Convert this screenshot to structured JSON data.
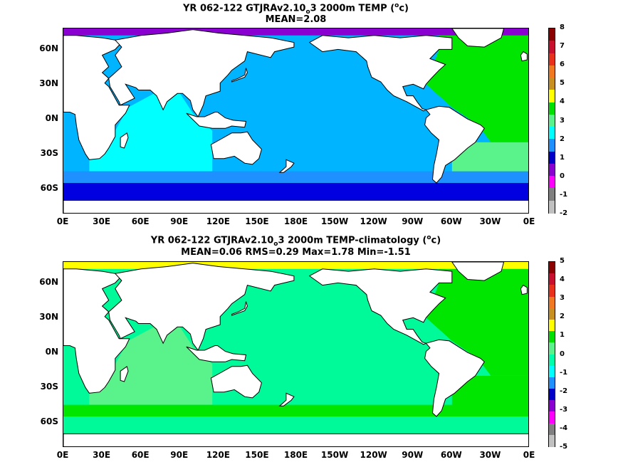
{
  "chart_data": [
    {
      "type": "heatmap",
      "title": "YR 062-122 GTJRAv2.10",
      "title_sub": "o",
      "title_rest": "3 2000m TEMP (",
      "title_sup": "o",
      "title_end": "c)",
      "subtitle": "MEAN=2.08",
      "x_ticks": [
        "0E",
        "30E",
        "60E",
        "90E",
        "120E",
        "150E",
        "180E",
        "150W",
        "120W",
        "90W",
        "60W",
        "30W",
        "0E"
      ],
      "y_ticks": [
        "60N",
        "30N",
        "0N",
        "30S",
        "60S"
      ],
      "colorbar": {
        "labels": [
          "8",
          "7",
          "6",
          "5",
          "4",
          "3",
          "2",
          "1",
          "0",
          "-1",
          "-2"
        ],
        "colors": [
          "#8b0000",
          "#c8102e",
          "#e8301a",
          "#f07820",
          "#c89020",
          "#ffff00",
          "#00e000",
          "#5af28a",
          "#00ffff",
          "#1e90ff",
          "#0000c8",
          "#8a00d0",
          "#ff00ff",
          "#808080",
          "#c0c0c0"
        ]
      },
      "regions": {
        "pacific": "#00b4ff",
        "indian": "#00ffff",
        "atlantic": "#00e600",
        "south_atlantic": "#5af28a",
        "southern_ocean": "#0000e0",
        "southern_band": "#1e90ff",
        "arctic": "#8a00d0"
      }
    },
    {
      "type": "heatmap",
      "title": "YR 062-122 GTJRAv2.10",
      "title_sub": "o",
      "title_rest": "3 2000m TEMP-climatology (",
      "title_sup": "o",
      "title_end": "c)",
      "subtitle": "MEAN=0.06   RMS=0.29   Max=1.78   Min=-1.51",
      "x_ticks": [
        "0E",
        "30E",
        "60E",
        "90E",
        "120E",
        "150E",
        "180E",
        "150W",
        "120W",
        "90W",
        "60W",
        "30W",
        "0E"
      ],
      "y_ticks": [
        "60N",
        "30N",
        "0N",
        "30S",
        "60S"
      ],
      "colorbar": {
        "labels": [
          "5",
          "4",
          "3",
          "2",
          "1",
          "0",
          "-1",
          "-2",
          "-3",
          "-4",
          "-5"
        ],
        "colors": [
          "#8b0000",
          "#c8102e",
          "#e8301a",
          "#f07820",
          "#c89020",
          "#ffff00",
          "#00e000",
          "#5af28a",
          "#00ffaa",
          "#00ffff",
          "#1e90ff",
          "#0000c8",
          "#8a00d0",
          "#ff00ff",
          "#808080",
          "#c0c0c0"
        ]
      },
      "regions": {
        "pacific": "#00fa9a",
        "indian": "#5af28a",
        "atlantic": "#00e600",
        "south_atlantic": "#00e600",
        "southern_ocean": "#00fa9a",
        "southern_band": "#00e600",
        "arctic": "#ffff00"
      }
    }
  ]
}
